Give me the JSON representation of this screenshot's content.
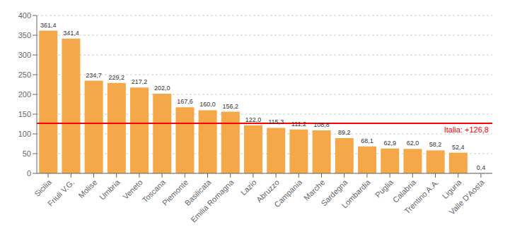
{
  "chart_data": {
    "type": "bar",
    "categories": [
      "Sicilia",
      "Friuli V.G.",
      "Molise",
      "Umbria",
      "Veneto",
      "Toscana",
      "Piemonte",
      "Basilicata",
      "Emilia Romagna",
      "Lazio",
      "Abruzzo",
      "Campania",
      "Marche",
      "Sardegna",
      "Lombardia",
      "Puglia",
      "Calabria",
      "Trentino A.A.",
      "Liguria",
      "Valle D'Aosta"
    ],
    "values": [
      361.4,
      341.4,
      234.7,
      229.2,
      217.2,
      202.0,
      167.6,
      160.0,
      156.2,
      122.0,
      115.3,
      111.2,
      108.8,
      89.2,
      68.1,
      62.9,
      62.0,
      58.2,
      52.4,
      0.4
    ],
    "value_labels": [
      "361,4",
      "341,4",
      "234,7",
      "229,2",
      "217,2",
      "202,0",
      "167,6",
      "160,0",
      "156,2",
      "122,0",
      "115,3",
      "111,2",
      "108,8",
      "89,2",
      "68,1",
      "62,9",
      "62,0",
      "58,2",
      "52,4",
      "0,4"
    ],
    "data_labels": true,
    "color": "#F5A84A",
    "ylim": [
      0,
      400
    ],
    "yticks": [
      0,
      50,
      100,
      150,
      200,
      250,
      300,
      350,
      400
    ],
    "grid": true,
    "annotations": [
      {
        "y": 126.8,
        "text": "Italia: +126,8",
        "color": "#FF0000"
      }
    ]
  }
}
